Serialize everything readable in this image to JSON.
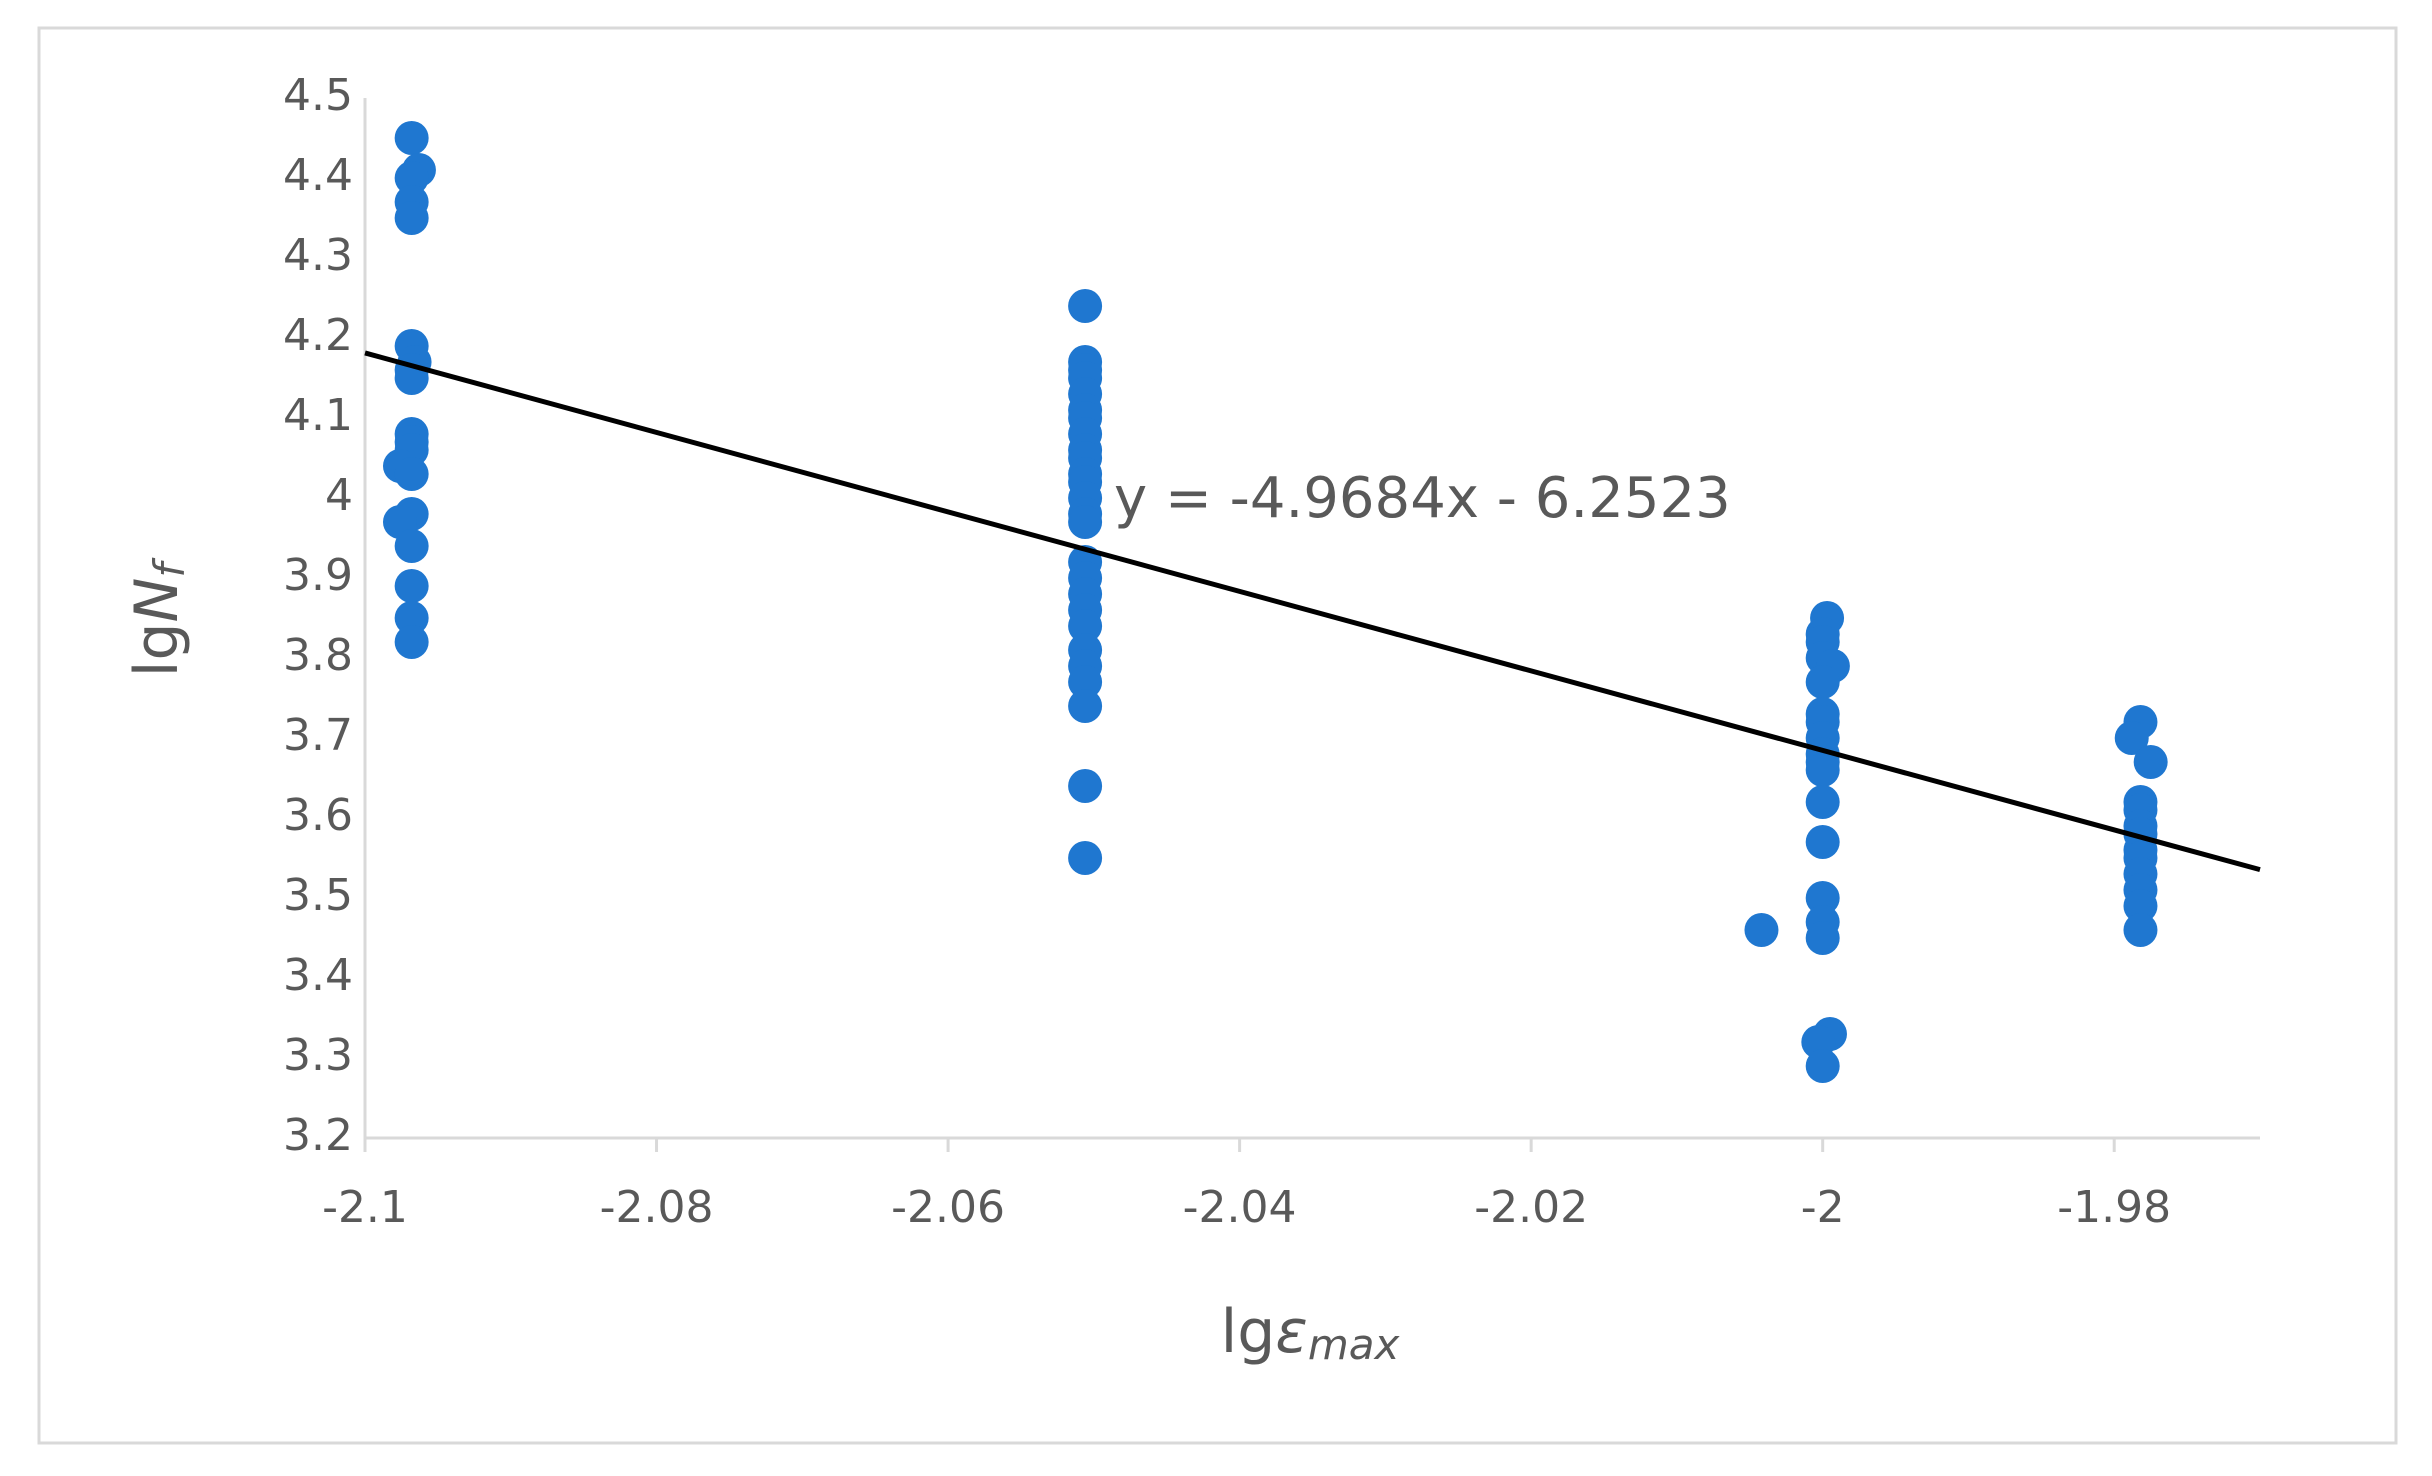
{
  "chart_data": {
    "type": "scatter",
    "x_label": [
      "lg",
      "ε",
      "max"
    ],
    "y_label": [
      "lg",
      "N",
      "f"
    ],
    "color": "#1f77d0",
    "x": [
      -2.0968,
      -2.0963,
      -2.0968,
      -2.0968,
      -2.0968,
      -2.0968,
      -2.0966,
      -2.0968,
      -2.0968,
      -2.0968,
      -2.0968,
      -2.0968,
      -2.0976,
      -2.0968,
      -2.0968,
      -2.0976,
      -2.0968,
      -2.0968,
      -2.0968,
      -2.0968,
      -2.0506,
      -2.0506,
      -2.0506,
      -2.0506,
      -2.0506,
      -2.0506,
      -2.0506,
      -2.0506,
      -2.0506,
      -2.0506,
      -2.0506,
      -2.0506,
      -2.0506,
      -2.0506,
      -2.0506,
      -2.0506,
      -2.0506,
      -2.0506,
      -2.0506,
      -2.0506,
      -2.0506,
      -2.0506,
      -2.0506,
      -2.0506,
      -2.0506,
      -2.0506,
      -1.9997,
      -2.0,
      -2.0,
      -2.0,
      -1.9993,
      -2.0,
      -2.0,
      -2.0,
      -2.0,
      -2.0,
      -2.0,
      -2.0,
      -2.0,
      -2.0,
      -2.0,
      -2.0,
      -2.0,
      -1.9995,
      -2.0003,
      -2.0,
      -2.0042,
      -1.9782,
      -1.9788,
      -1.9775,
      -1.9782,
      -1.9782,
      -1.9782,
      -1.9782,
      -1.9782,
      -1.9782,
      -1.9782,
      -1.9782,
      -1.9782,
      -1.9782
    ],
    "y": [
      4.45,
      4.41,
      4.4,
      4.37,
      4.35,
      4.19,
      4.17,
      4.16,
      4.15,
      4.08,
      4.07,
      4.06,
      4.04,
      4.03,
      3.98,
      3.97,
      3.94,
      3.89,
      3.85,
      3.82,
      4.24,
      4.17,
      4.16,
      4.15,
      4.13,
      4.11,
      4.1,
      4.08,
      4.06,
      4.05,
      4.03,
      4.02,
      4.0,
      3.98,
      3.97,
      3.92,
      3.9,
      3.88,
      3.86,
      3.84,
      3.81,
      3.79,
      3.77,
      3.74,
      3.64,
      3.55,
      3.85,
      3.83,
      3.82,
      3.8,
      3.79,
      3.77,
      3.73,
      3.72,
      3.7,
      3.68,
      3.67,
      3.66,
      3.62,
      3.57,
      3.5,
      3.47,
      3.45,
      3.33,
      3.32,
      3.29,
      3.46,
      3.72,
      3.7,
      3.67,
      3.62,
      3.61,
      3.59,
      3.58,
      3.56,
      3.55,
      3.53,
      3.51,
      3.49,
      3.46
    ],
    "trendline": {
      "label": "y = -4.9684x - 6.2523",
      "slope": -4.9684,
      "intercept": -6.2523,
      "color": "#000000"
    },
    "xlim": [
      -2.1,
      -1.97
    ],
    "xticks": [
      -2.1,
      -2.08,
      -2.06,
      -2.04,
      -2.02,
      -2,
      -1.98
    ],
    "ylim": [
      3.2,
      4.5
    ],
    "yticks": [
      3.2,
      3.3,
      3.4,
      3.5,
      3.6,
      3.7,
      3.8,
      3.9,
      4,
      4.1,
      4.2,
      4.3,
      4.4,
      4.5
    ],
    "grid": false
  }
}
